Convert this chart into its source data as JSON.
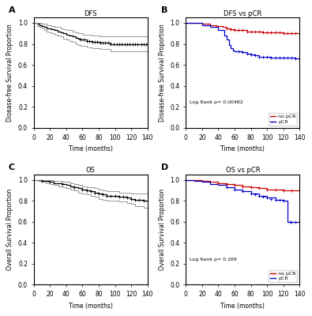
{
  "panel_A": {
    "title": "DFS",
    "ylabel": "Disease-free Survival Proportion",
    "xlabel": "Time (months)",
    "xlim": [
      0,
      140
    ],
    "ylim": [
      0.0,
      1.05
    ],
    "yticks": [
      0.0,
      0.2,
      0.4,
      0.6,
      0.8,
      1.0
    ],
    "xticks": [
      0,
      20,
      40,
      60,
      80,
      100,
      120,
      140
    ],
    "curve_times": [
      0,
      4,
      7,
      10,
      13,
      16,
      19,
      22,
      26,
      29,
      33,
      36,
      40,
      44,
      48,
      52,
      55,
      58,
      61,
      65,
      68,
      72,
      75,
      78,
      82,
      85,
      88,
      92,
      95,
      98,
      102,
      105,
      108,
      112,
      115,
      118,
      122,
      125,
      128,
      132,
      135,
      138,
      140
    ],
    "curve_surv": [
      1.0,
      0.99,
      0.98,
      0.97,
      0.96,
      0.95,
      0.95,
      0.94,
      0.93,
      0.92,
      0.91,
      0.9,
      0.89,
      0.88,
      0.87,
      0.86,
      0.85,
      0.84,
      0.84,
      0.83,
      0.83,
      0.82,
      0.82,
      0.82,
      0.81,
      0.81,
      0.81,
      0.81,
      0.8,
      0.8,
      0.8,
      0.8,
      0.8,
      0.8,
      0.8,
      0.8,
      0.8,
      0.8,
      0.8,
      0.8,
      0.8,
      0.8,
      0.8
    ],
    "ci_upper": [
      1.0,
      1.0,
      1.0,
      0.99,
      0.99,
      0.98,
      0.98,
      0.97,
      0.96,
      0.96,
      0.95,
      0.94,
      0.93,
      0.93,
      0.92,
      0.91,
      0.9,
      0.9,
      0.89,
      0.89,
      0.89,
      0.88,
      0.88,
      0.88,
      0.87,
      0.87,
      0.87,
      0.87,
      0.87,
      0.87,
      0.87,
      0.87,
      0.87,
      0.87,
      0.87,
      0.87,
      0.87,
      0.87,
      0.87,
      0.87,
      0.87,
      0.87,
      0.87
    ],
    "ci_lower": [
      1.0,
      0.97,
      0.96,
      0.95,
      0.93,
      0.92,
      0.91,
      0.9,
      0.89,
      0.88,
      0.87,
      0.85,
      0.84,
      0.83,
      0.82,
      0.8,
      0.79,
      0.78,
      0.78,
      0.77,
      0.77,
      0.76,
      0.76,
      0.76,
      0.75,
      0.75,
      0.75,
      0.75,
      0.73,
      0.73,
      0.73,
      0.73,
      0.73,
      0.73,
      0.73,
      0.73,
      0.73,
      0.73,
      0.73,
      0.73,
      0.73,
      0.73,
      0.73
    ],
    "censor_times": [
      58,
      62,
      65,
      68,
      72,
      75,
      78,
      82,
      85,
      88,
      92,
      95,
      98,
      102,
      105,
      108,
      112,
      115,
      118,
      122,
      125,
      128,
      132,
      135,
      138,
      140
    ],
    "censor_surv": [
      0.84,
      0.84,
      0.83,
      0.83,
      0.82,
      0.82,
      0.82,
      0.81,
      0.81,
      0.81,
      0.81,
      0.8,
      0.8,
      0.8,
      0.8,
      0.8,
      0.8,
      0.8,
      0.8,
      0.8,
      0.8,
      0.8,
      0.8,
      0.8,
      0.8,
      0.8
    ]
  },
  "panel_B": {
    "title": "DFS vs pCR",
    "ylabel": "Disease-free Survival Proportion",
    "xlabel": "Time (months)",
    "xlim": [
      0,
      140
    ],
    "ylim": [
      0.0,
      1.05
    ],
    "yticks": [
      0.0,
      0.2,
      0.4,
      0.6,
      0.8,
      1.0
    ],
    "xticks": [
      0,
      20,
      40,
      60,
      80,
      100,
      120,
      140
    ],
    "logrank_p": "Log Rank p= 0.00482",
    "red_times": [
      0,
      10,
      20,
      30,
      38,
      45,
      50,
      55,
      60,
      65,
      70,
      75,
      80,
      85,
      90,
      95,
      100,
      105,
      110,
      115,
      120,
      125,
      130,
      135,
      140
    ],
    "red_surv": [
      1.0,
      1.0,
      0.99,
      0.98,
      0.97,
      0.96,
      0.95,
      0.94,
      0.93,
      0.93,
      0.93,
      0.92,
      0.92,
      0.92,
      0.92,
      0.91,
      0.91,
      0.91,
      0.91,
      0.91,
      0.9,
      0.9,
      0.9,
      0.9,
      0.9
    ],
    "blue_times": [
      0,
      10,
      20,
      30,
      40,
      47,
      50,
      53,
      55,
      58,
      60,
      65,
      70,
      75,
      80,
      85,
      90,
      95,
      100,
      105,
      110,
      115,
      120,
      125,
      130,
      135,
      140
    ],
    "blue_surv": [
      1.0,
      1.0,
      0.98,
      0.96,
      0.93,
      0.88,
      0.84,
      0.79,
      0.76,
      0.74,
      0.73,
      0.73,
      0.72,
      0.71,
      0.7,
      0.69,
      0.68,
      0.68,
      0.68,
      0.67,
      0.67,
      0.67,
      0.67,
      0.67,
      0.67,
      0.66,
      0.66
    ],
    "red_censor_times": [
      50,
      55,
      60,
      65,
      70,
      75,
      80,
      85,
      90,
      95,
      100,
      105,
      110,
      115,
      120,
      125,
      130,
      135,
      140
    ],
    "red_censor_surv": [
      0.95,
      0.94,
      0.93,
      0.93,
      0.93,
      0.92,
      0.92,
      0.92,
      0.92,
      0.91,
      0.91,
      0.91,
      0.91,
      0.91,
      0.9,
      0.9,
      0.9,
      0.9,
      0.9
    ],
    "blue_censor_times": [
      65,
      70,
      75,
      80,
      85,
      90,
      95,
      100,
      105,
      110,
      115,
      120,
      125,
      130,
      135,
      140
    ],
    "blue_censor_surv": [
      0.73,
      0.72,
      0.71,
      0.7,
      0.69,
      0.68,
      0.68,
      0.68,
      0.67,
      0.67,
      0.67,
      0.67,
      0.67,
      0.67,
      0.66,
      0.66
    ]
  },
  "panel_C": {
    "title": "OS",
    "ylabel": "Overall Survival Proportion",
    "xlabel": "Time (months)",
    "xlim": [
      0,
      140
    ],
    "ylim": [
      0.0,
      1.05
    ],
    "yticks": [
      0.0,
      0.2,
      0.4,
      0.6,
      0.8,
      1.0
    ],
    "xticks": [
      0,
      20,
      40,
      60,
      80,
      100,
      120,
      140
    ],
    "curve_times": [
      0,
      5,
      10,
      15,
      20,
      25,
      30,
      35,
      40,
      45,
      50,
      55,
      60,
      65,
      70,
      75,
      80,
      85,
      90,
      95,
      100,
      105,
      110,
      115,
      120,
      125,
      130,
      135,
      140
    ],
    "curve_surv": [
      1.0,
      1.0,
      0.99,
      0.99,
      0.98,
      0.97,
      0.97,
      0.96,
      0.95,
      0.94,
      0.93,
      0.92,
      0.91,
      0.9,
      0.89,
      0.88,
      0.87,
      0.86,
      0.85,
      0.85,
      0.85,
      0.84,
      0.84,
      0.83,
      0.82,
      0.81,
      0.81,
      0.8,
      0.8
    ],
    "ci_upper": [
      1.0,
      1.0,
      1.0,
      1.0,
      1.0,
      0.99,
      0.99,
      0.98,
      0.98,
      0.97,
      0.96,
      0.95,
      0.94,
      0.93,
      0.93,
      0.92,
      0.91,
      0.9,
      0.89,
      0.89,
      0.89,
      0.88,
      0.88,
      0.88,
      0.87,
      0.87,
      0.87,
      0.87,
      0.87
    ],
    "ci_lower": [
      1.0,
      0.99,
      0.98,
      0.97,
      0.96,
      0.95,
      0.94,
      0.93,
      0.92,
      0.91,
      0.9,
      0.88,
      0.87,
      0.86,
      0.85,
      0.84,
      0.82,
      0.81,
      0.8,
      0.8,
      0.8,
      0.79,
      0.79,
      0.78,
      0.77,
      0.75,
      0.75,
      0.73,
      0.73
    ],
    "censor_times": [
      10,
      20,
      35,
      50,
      60,
      65,
      70,
      75,
      80,
      85,
      90,
      95,
      100,
      105,
      110,
      115,
      120,
      125,
      130,
      135,
      140
    ],
    "censor_surv": [
      0.99,
      0.98,
      0.96,
      0.93,
      0.91,
      0.9,
      0.89,
      0.88,
      0.87,
      0.86,
      0.85,
      0.85,
      0.85,
      0.84,
      0.84,
      0.83,
      0.82,
      0.81,
      0.81,
      0.8,
      0.8
    ]
  },
  "panel_D": {
    "title": "OS vs pCR",
    "ylabel": "Overall Survival Proportion",
    "xlabel": "Time (months)",
    "xlim": [
      0,
      140
    ],
    "ylim": [
      0.0,
      1.05
    ],
    "yticks": [
      0.0,
      0.2,
      0.4,
      0.6,
      0.8,
      1.0
    ],
    "xticks": [
      0,
      20,
      40,
      60,
      80,
      100,
      120,
      140
    ],
    "logrank_p": "Log Rank p= 0.169",
    "red_times": [
      0,
      10,
      20,
      30,
      40,
      50,
      60,
      70,
      80,
      90,
      100,
      110,
      120,
      130,
      140
    ],
    "red_surv": [
      1.0,
      1.0,
      0.99,
      0.98,
      0.97,
      0.96,
      0.95,
      0.94,
      0.93,
      0.92,
      0.91,
      0.91,
      0.9,
      0.9,
      0.9
    ],
    "blue_times": [
      0,
      5,
      10,
      20,
      30,
      40,
      50,
      60,
      70,
      80,
      90,
      100,
      110,
      120,
      122,
      125,
      128,
      130,
      135,
      140
    ],
    "blue_surv": [
      1.0,
      1.0,
      0.99,
      0.98,
      0.96,
      0.95,
      0.93,
      0.91,
      0.89,
      0.87,
      0.85,
      0.83,
      0.81,
      0.8,
      0.8,
      0.6,
      0.6,
      0.6,
      0.6,
      0.6
    ],
    "red_censor_times": [
      40,
      50,
      60,
      70,
      80,
      90,
      100,
      110,
      120,
      130,
      140
    ],
    "red_censor_surv": [
      0.97,
      0.96,
      0.95,
      0.94,
      0.93,
      0.92,
      0.91,
      0.91,
      0.9,
      0.9,
      0.9
    ],
    "blue_censor_times": [
      50,
      60,
      70,
      80,
      85,
      90,
      95,
      100,
      105,
      110,
      115,
      120,
      128,
      130,
      135,
      140
    ],
    "blue_censor_surv": [
      0.93,
      0.91,
      0.89,
      0.87,
      0.86,
      0.85,
      0.84,
      0.83,
      0.82,
      0.81,
      0.81,
      0.8,
      0.6,
      0.6,
      0.6,
      0.6
    ]
  },
  "colors": {
    "black": "#000000",
    "gray": "#888888",
    "red": "#CC0000",
    "blue": "#0000CC",
    "background": "#FFFFFF"
  }
}
